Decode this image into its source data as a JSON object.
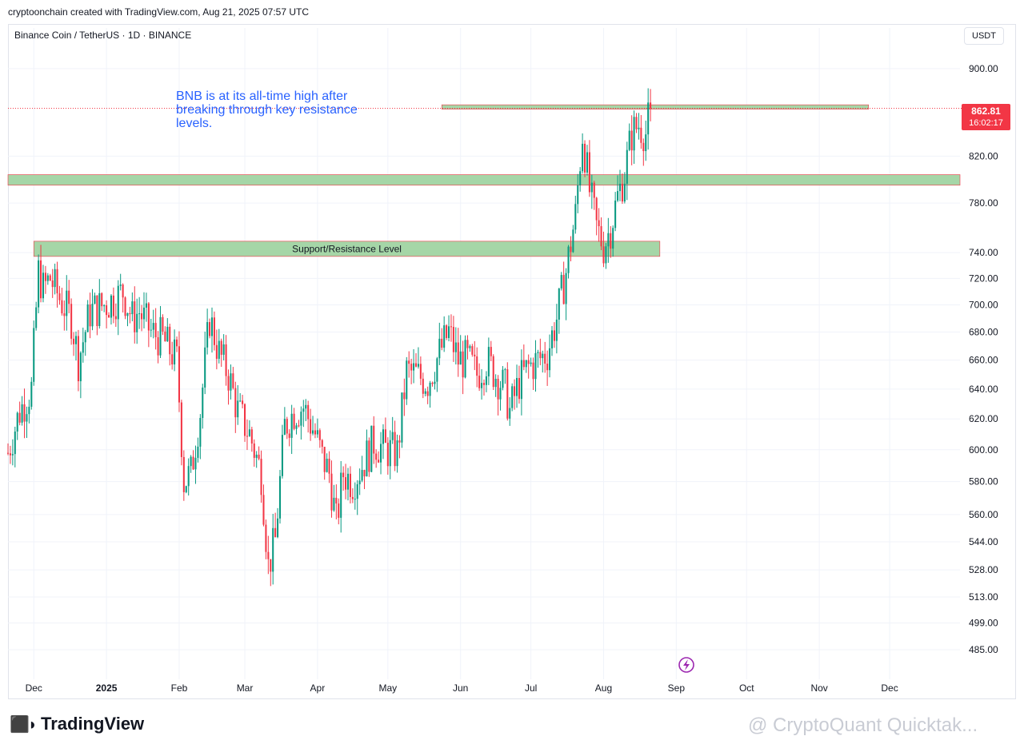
{
  "header": {
    "credit": "cryptoonchain created with TradingView.com, Aug 21, 2025 07:57 UTC"
  },
  "symbol_line": "Binance Coin / TetherUS · 1D · BINANCE",
  "currency_button": "USDT",
  "price_badge": {
    "price": "862.81",
    "countdown": "16:02:17"
  },
  "annotation": "BNB is at its all-time high after breaking through key resistance levels.",
  "footer": {
    "logo_text": "TradingView",
    "watermark": "@ CryptoQuant Quicktak..."
  },
  "colors": {
    "up": "#089981",
    "down": "#f23645",
    "zone_fill": "#a5d6a7",
    "zone_border": "#f23645",
    "annotation": "#2962ff"
  },
  "chart_data": {
    "type": "candlestick",
    "y_scale": "log",
    "ylim": [
      470,
      920
    ],
    "y_ticks": [
      "900.00",
      "820.00",
      "780.00",
      "740.00",
      "720.00",
      "700.00",
      "680.00",
      "660.00",
      "640.00",
      "620.00",
      "600.00",
      "580.00",
      "560.00",
      "544.00",
      "528.00",
      "513.00",
      "499.00",
      "485.00"
    ],
    "x_ticks": [
      "Dec",
      "2025",
      "Feb",
      "Mar",
      "Apr",
      "May",
      "Jun",
      "Jul",
      "Aug",
      "Sep",
      "Oct",
      "Nov",
      "Dec"
    ],
    "last_price": 862.81,
    "zones": [
      {
        "name": "",
        "low": 862,
        "high": 866,
        "from": "2025-05-24",
        "to": "2025-11-22"
      },
      {
        "name": "",
        "low": 795,
        "high": 804,
        "from": "2024-11-20",
        "to": "2025-12-31"
      },
      {
        "name": "Support/Resistance Level",
        "low": 737,
        "high": 749,
        "from": "2024-12-01",
        "to": "2025-08-25"
      }
    ],
    "path": [
      [
        "2024-11-20",
        598
      ],
      [
        "2024-11-25",
        625
      ],
      [
        "2024-11-30",
        640
      ],
      [
        "2024-12-03",
        725
      ],
      [
        "2024-12-05",
        712
      ],
      [
        "2024-12-08",
        720
      ],
      [
        "2024-12-12",
        705
      ],
      [
        "2024-12-17",
        690
      ],
      [
        "2024-12-20",
        660
      ],
      [
        "2024-12-25",
        695
      ],
      [
        "2024-12-31",
        700
      ],
      [
        "2025-01-05",
        705
      ],
      [
        "2025-01-08",
        710
      ],
      [
        "2025-01-12",
        690
      ],
      [
        "2025-01-15",
        695
      ],
      [
        "2025-01-20",
        680
      ],
      [
        "2025-01-25",
        675
      ],
      [
        "2025-01-31",
        660
      ],
      [
        "2025-02-03",
        580
      ],
      [
        "2025-02-06",
        585
      ],
      [
        "2025-02-10",
        625
      ],
      [
        "2025-02-14",
        690
      ],
      [
        "2025-02-18",
        665
      ],
      [
        "2025-02-22",
        650
      ],
      [
        "2025-02-26",
        625
      ],
      [
        "2025-03-03",
        610
      ],
      [
        "2025-03-08",
        585
      ],
      [
        "2025-03-11",
        530
      ],
      [
        "2025-03-14",
        545
      ],
      [
        "2025-03-18",
        615
      ],
      [
        "2025-03-22",
        625
      ],
      [
        "2025-03-26",
        628
      ],
      [
        "2025-03-31",
        610
      ],
      [
        "2025-04-03",
        595
      ],
      [
        "2025-04-06",
        585
      ],
      [
        "2025-04-09",
        555
      ],
      [
        "2025-04-12",
        585
      ],
      [
        "2025-04-16",
        580
      ],
      [
        "2025-04-20",
        590
      ],
      [
        "2025-04-25",
        605
      ],
      [
        "2025-04-30",
        600
      ],
      [
        "2025-05-05",
        598
      ],
      [
        "2025-05-09",
        652
      ],
      [
        "2025-05-13",
        650
      ],
      [
        "2025-05-18",
        645
      ],
      [
        "2025-05-23",
        665
      ],
      [
        "2025-05-27",
        680
      ],
      [
        "2025-05-31",
        660
      ],
      [
        "2025-06-04",
        660
      ],
      [
        "2025-06-08",
        650
      ],
      [
        "2025-06-12",
        660
      ],
      [
        "2025-06-16",
        650
      ],
      [
        "2025-06-20",
        640
      ],
      [
        "2025-06-22",
        625
      ],
      [
        "2025-06-26",
        645
      ],
      [
        "2025-06-30",
        655
      ],
      [
        "2025-07-04",
        660
      ],
      [
        "2025-07-08",
        665
      ],
      [
        "2025-07-12",
        690
      ],
      [
        "2025-07-16",
        725
      ],
      [
        "2025-07-20",
        770
      ],
      [
        "2025-07-23",
        840
      ],
      [
        "2025-07-26",
        790
      ],
      [
        "2025-07-29",
        760
      ],
      [
        "2025-08-01",
        745
      ],
      [
        "2025-08-04",
        760
      ],
      [
        "2025-08-07",
        785
      ],
      [
        "2025-08-10",
        805
      ],
      [
        "2025-08-13",
        840
      ],
      [
        "2025-08-16",
        848
      ],
      [
        "2025-08-19",
        840
      ],
      [
        "2025-08-21",
        862.81
      ]
    ]
  }
}
